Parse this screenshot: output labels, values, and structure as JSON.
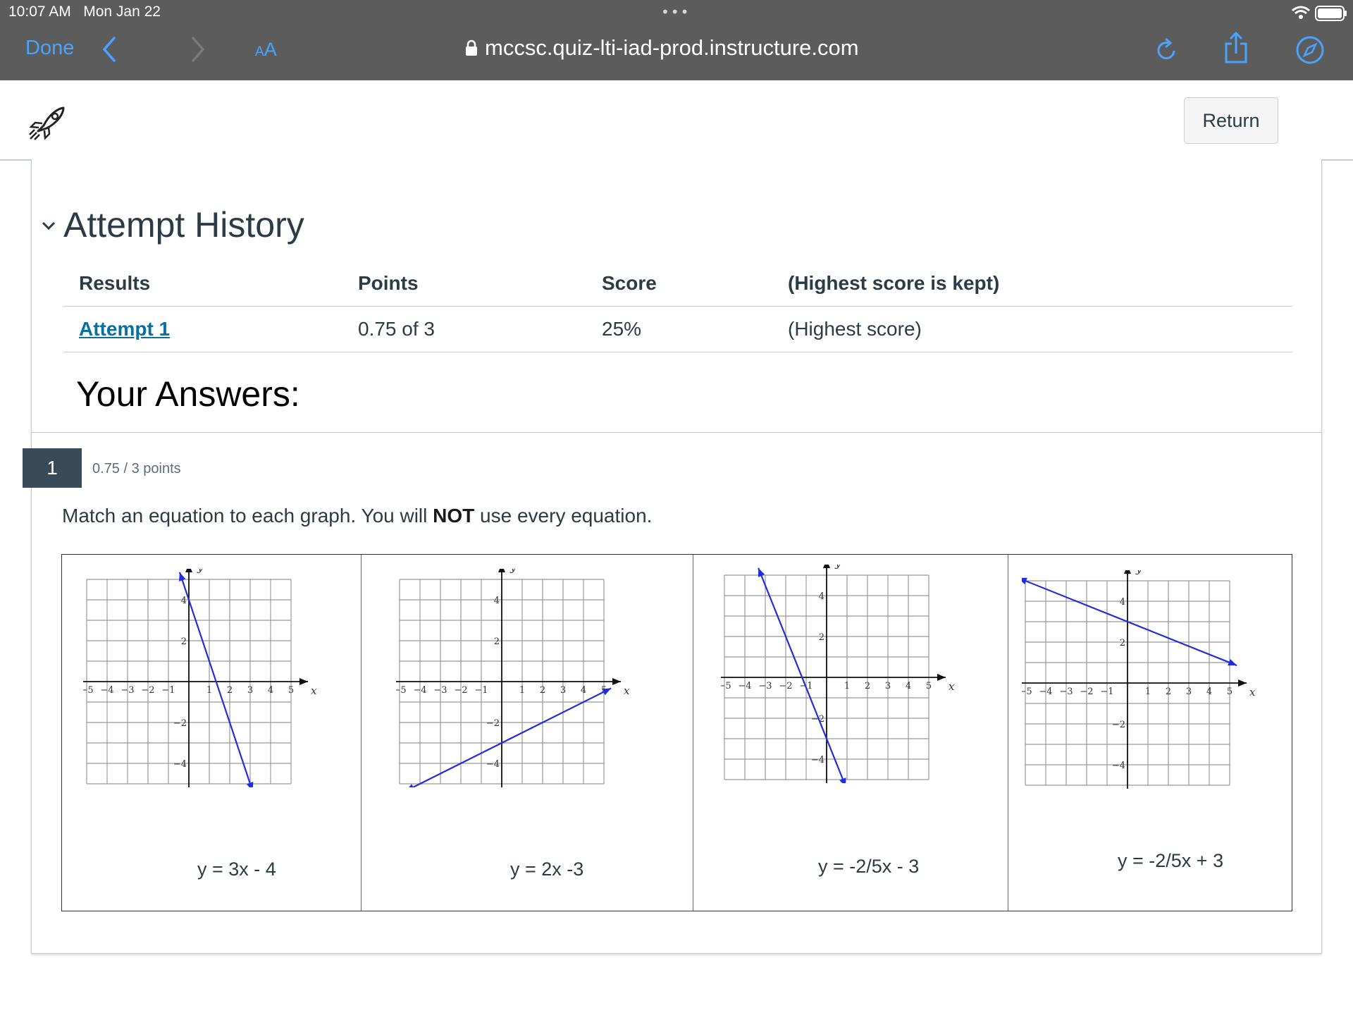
{
  "status_bar": {
    "time": "10:07 AM",
    "date": "Mon Jan 22",
    "dots": "•••"
  },
  "browser": {
    "done_label": "Done",
    "aa_small": "A",
    "aa_big": "A",
    "url": "mccsc.quiz-lti-iad-prod.instructure.com",
    "icons": [
      "back-chevron-icon",
      "forward-chevron-icon",
      "reload-icon",
      "share-icon",
      "compass-icon",
      "lock-icon",
      "wifi-icon",
      "battery-icon"
    ]
  },
  "header": {
    "logo_icon": "rocket-icon",
    "return_label": "Return"
  },
  "attempt_history": {
    "title": "Attempt History",
    "columns": [
      "Results",
      "Points",
      "Score",
      "(Highest score is kept)"
    ],
    "rows": [
      {
        "result": "Attempt 1",
        "points": "0.75 of 3",
        "score": "25%",
        "note": "(Highest score)"
      }
    ]
  },
  "answers_title": "Your Answers:",
  "question": {
    "number": "1",
    "points": "0.75 / 3 points",
    "text_before": "Match an equation to each graph. You will ",
    "text_bold": "NOT",
    "text_after": " use every equation.",
    "axis_x_label": "x",
    "axis_y_label": "y",
    "graphs": [
      {
        "line": {
          "slope": -3,
          "intercept": 4
        },
        "answer": "y = 3x - 4",
        "correct": false
      },
      {
        "line": {
          "slope": 0.5,
          "intercept": -3
        },
        "answer": "y = 2x -3",
        "correct": false
      },
      {
        "line": {
          "slope": -2.5,
          "intercept": -3
        },
        "answer": "y = -2/5x - 3",
        "correct": false
      },
      {
        "line": {
          "slope": -0.4,
          "intercept": 3
        },
        "answer": "y = -2/5x + 3",
        "correct": true
      }
    ]
  },
  "colors": {
    "wrong": "#e0061f",
    "correct": "#0b874b",
    "link": "#0770a3",
    "graph_line": "#1f2fe0"
  }
}
